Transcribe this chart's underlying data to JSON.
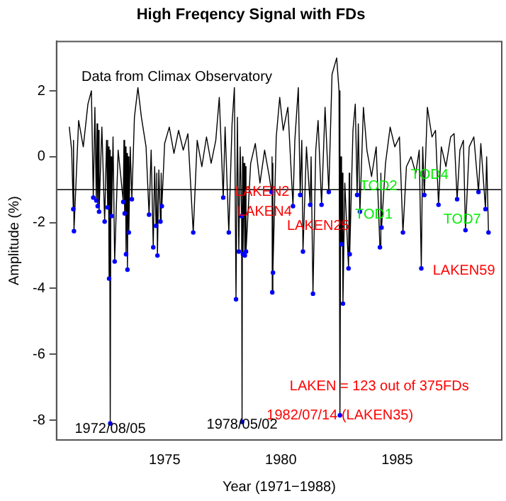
{
  "chart_data": {
    "type": "line",
    "title": "High Freqency Signal with FDs",
    "xlabel": "Year (1971−1988)",
    "ylabel": "Amplitude (%)",
    "xlim": [
      1970.35,
      1989.5
    ],
    "ylim": [
      -8.6,
      3.5
    ],
    "xticks": [
      1975,
      1980,
      1985
    ],
    "yticks": [
      -8,
      -6,
      -4,
      -2,
      0,
      2
    ],
    "grid": false,
    "legend": false,
    "ref_lines": [
      {
        "axis": "y",
        "value": -1,
        "label": null,
        "color": "#000000"
      }
    ],
    "series": [
      {
        "type": "line",
        "color": "#000000",
        "marker": "none",
        "x": [
          1970.9,
          1971.0,
          1971.07,
          1971.08,
          1971.1,
          1971.3,
          1971.5,
          1971.7,
          1971.85,
          1971.93,
          1972.0,
          1972.06,
          1972.09,
          1972.12,
          1972.15,
          1972.18,
          1972.3,
          1972.42,
          1972.5,
          1972.55,
          1972.58,
          1972.61,
          1972.63,
          1972.66,
          1972.69,
          1972.72,
          1972.78,
          1972.85,
          1973.0,
          1973.1,
          1973.22,
          1973.25,
          1973.28,
          1973.31,
          1973.34,
          1973.37,
          1973.4,
          1973.43,
          1973.46,
          1973.52,
          1973.59,
          1973.7,
          1973.85,
          1974.0,
          1974.2,
          1974.33,
          1974.42,
          1974.51,
          1974.57,
          1974.63,
          1974.66,
          1974.69,
          1974.75,
          1974.82,
          1974.85,
          1974.88,
          1975.0,
          1975.2,
          1975.4,
          1975.6,
          1975.8,
          1976.0,
          1976.23,
          1976.4,
          1976.6,
          1976.8,
          1977.0,
          1977.2,
          1977.35,
          1977.52,
          1977.6,
          1977.76,
          1977.9,
          1978.0,
          1978.07,
          1978.13,
          1978.19,
          1978.25,
          1978.31,
          1978.33,
          1978.35,
          1978.37,
          1978.41,
          1978.45,
          1978.47,
          1978.5,
          1978.7,
          1978.9,
          1979.1,
          1979.3,
          1979.5,
          1979.6,
          1979.62,
          1979.63,
          1979.65,
          1979.66,
          1979.8,
          1979.95,
          1980.1,
          1980.3,
          1980.52,
          1980.6,
          1980.75,
          1980.83,
          1980.9,
          1980.95,
          1981.1,
          1981.26,
          1981.3,
          1981.38,
          1981.5,
          1981.6,
          1981.75,
          1981.9,
          1982.06,
          1982.2,
          1982.4,
          1982.5,
          1982.54,
          1982.58,
          1982.61,
          1982.64,
          1982.67,
          1982.75,
          1982.91,
          1982.94,
          1982.96,
          1983.1,
          1983.2,
          1983.28,
          1983.33,
          1983.4,
          1983.55,
          1983.7,
          1983.9,
          1984.1,
          1984.26,
          1984.3,
          1984.33,
          1984.5,
          1984.7,
          1984.9,
          1985.1,
          1985.25,
          1985.4,
          1985.6,
          1985.8,
          1985.95,
          1986.04,
          1986.1,
          1986.17,
          1986.3,
          1986.5,
          1986.65,
          1986.78,
          1986.9,
          1987.1,
          1987.3,
          1987.45,
          1987.58,
          1987.7,
          1987.85,
          1987.94,
          1988.1,
          1988.3,
          1988.5,
          1988.6,
          1988.8,
          1988.85,
          1988.93
        ],
        "values": [
          0.9,
          0.2,
          -1.59,
          0.5,
          -2.26,
          1.1,
          0.3,
          1.6,
          2.0,
          -1.24,
          1.5,
          -1.33,
          1.0,
          -1.5,
          0.8,
          -1.67,
          0.9,
          -1.97,
          0.5,
          -1.54,
          0.3,
          -3.7,
          0.2,
          -8.1,
          0.0,
          -1.8,
          0.6,
          -3.18,
          0.2,
          -0.5,
          -1.37,
          0.5,
          -1.72,
          0.3,
          -2.96,
          0.1,
          -3.43,
          0.0,
          -2.3,
          0.3,
          -1.29,
          1.2,
          2.1,
          1.2,
          0.3,
          -1.76,
          0.2,
          -2.75,
          -0.3,
          -2.1,
          -0.5,
          -3.0,
          -0.4,
          -1.97,
          -0.5,
          -1.5,
          0.4,
          0.9,
          0.1,
          0.8,
          0.2,
          0.7,
          -2.3,
          0.5,
          -0.3,
          0.6,
          -0.2,
          0.5,
          1.8,
          -1.24,
          0.9,
          -2.3,
          1.0,
          2.1,
          -4.33,
          1.2,
          -2.88,
          0.3,
          -1.8,
          -8.05,
          0.0,
          -2.96,
          -0.2,
          -3.0,
          -0.3,
          -2.88,
          -0.2,
          0.4,
          -0.8,
          0.2,
          -0.6,
          -1.07,
          0.0,
          -4.12,
          -0.2,
          -3.52,
          0.6,
          1.8,
          0.8,
          1.5,
          -1.5,
          0.5,
          2.1,
          -1.16,
          0.5,
          -2.88,
          0.3,
          -1.46,
          0.0,
          -4.16,
          0.2,
          1.1,
          -1.46,
          1.5,
          -1.07,
          2.5,
          3.0,
          2.0,
          -7.85,
          0.0,
          -2.66,
          -0.5,
          -4.46,
          -0.8,
          -3.39,
          -0.5,
          -2.96,
          0.8,
          1.6,
          -1.16,
          1.0,
          -1.67,
          1.5,
          0.2,
          -0.6,
          0.3,
          -2.75,
          -0.5,
          -2.15,
          -0.2,
          0.9,
          0.3,
          0.6,
          -2.3,
          -0.3,
          0.0,
          -0.5,
          0.2,
          -3.39,
          0.3,
          -1.16,
          1.5,
          0.6,
          0.8,
          -1.46,
          0.3,
          -0.3,
          0.6,
          0.7,
          -1.29,
          0.2,
          0.5,
          -2.23,
          0.3,
          0.6,
          -1.07,
          0.4,
          -1.59,
          0.0,
          -2.3
        ]
      },
      {
        "type": "scatter",
        "color": "#0000ff",
        "marker": "circle",
        "x": [
          1971.07,
          1971.1,
          1971.93,
          1972.06,
          1972.12,
          1972.18,
          1972.42,
          1972.55,
          1972.61,
          1972.66,
          1972.72,
          1972.85,
          1973.22,
          1973.28,
          1973.34,
          1973.4,
          1973.46,
          1973.59,
          1974.33,
          1974.51,
          1974.63,
          1974.69,
          1974.82,
          1974.88,
          1976.23,
          1977.52,
          1977.76,
          1978.07,
          1978.19,
          1978.31,
          1978.33,
          1978.37,
          1978.45,
          1978.5,
          1979.6,
          1979.63,
          1979.66,
          1980.52,
          1980.83,
          1980.95,
          1981.26,
          1981.38,
          1981.75,
          1982.06,
          1982.54,
          1982.61,
          1982.67,
          1982.91,
          1982.96,
          1983.28,
          1983.4,
          1984.26,
          1984.33,
          1985.25,
          1986.04,
          1986.17,
          1986.78,
          1987.58,
          1987.94,
          1988.5,
          1988.8,
          1988.93
        ],
        "values": [
          -1.59,
          -2.26,
          -1.24,
          -1.33,
          -1.5,
          -1.67,
          -1.97,
          -1.54,
          -3.7,
          -8.1,
          -1.8,
          -3.18,
          -1.37,
          -1.72,
          -2.96,
          -3.43,
          -2.3,
          -1.29,
          -1.76,
          -2.75,
          -2.1,
          -3.0,
          -1.97,
          -1.5,
          -2.3,
          -1.24,
          -2.3,
          -4.33,
          -2.88,
          -1.8,
          -8.05,
          -2.96,
          -3.0,
          -2.88,
          -1.07,
          -4.12,
          -3.52,
          -1.5,
          -1.16,
          -2.88,
          -1.46,
          -4.16,
          -1.46,
          -1.07,
          -7.85,
          -2.66,
          -4.46,
          -3.39,
          -2.96,
          -1.16,
          -1.67,
          -2.75,
          -2.15,
          -2.3,
          -3.39,
          -1.16,
          -1.46,
          -1.29,
          -2.23,
          -1.07,
          -1.59,
          -2.3
        ]
      }
    ],
    "annotations": [
      "Data from Climax Observatory",
      {
        "text": "LAKEN2",
        "x": 1979.2,
        "y": -1.07
      },
      {
        "text": "LAKEN4",
        "x": 1979.3,
        "y": -1.67
      },
      {
        "text": "LAKEN25",
        "x": 1981.6,
        "y": -2.1
      },
      {
        "text": "TOD2",
        "x": 1984.2,
        "y": -0.9
      },
      {
        "text": "TOD1",
        "x": 1984.0,
        "y": -1.76
      },
      {
        "text": "TOD4",
        "x": 1986.4,
        "y": -0.56
      },
      {
        "text": "TOD7",
        "x": 1987.8,
        "y": -1.9
      },
      "LAKEN59",
      "LAKEN = 123 out of 375FDs",
      {
        "text": "1982/07/14 (LAKEN35)",
        "x": 1982.54,
        "y": -7.85
      },
      {
        "text": "1972/08/05",
        "x": 1972.66,
        "y": -8.1
      },
      {
        "text": "1978/05/02",
        "x": 1978.33,
        "y": -8.05
      }
    ]
  }
}
